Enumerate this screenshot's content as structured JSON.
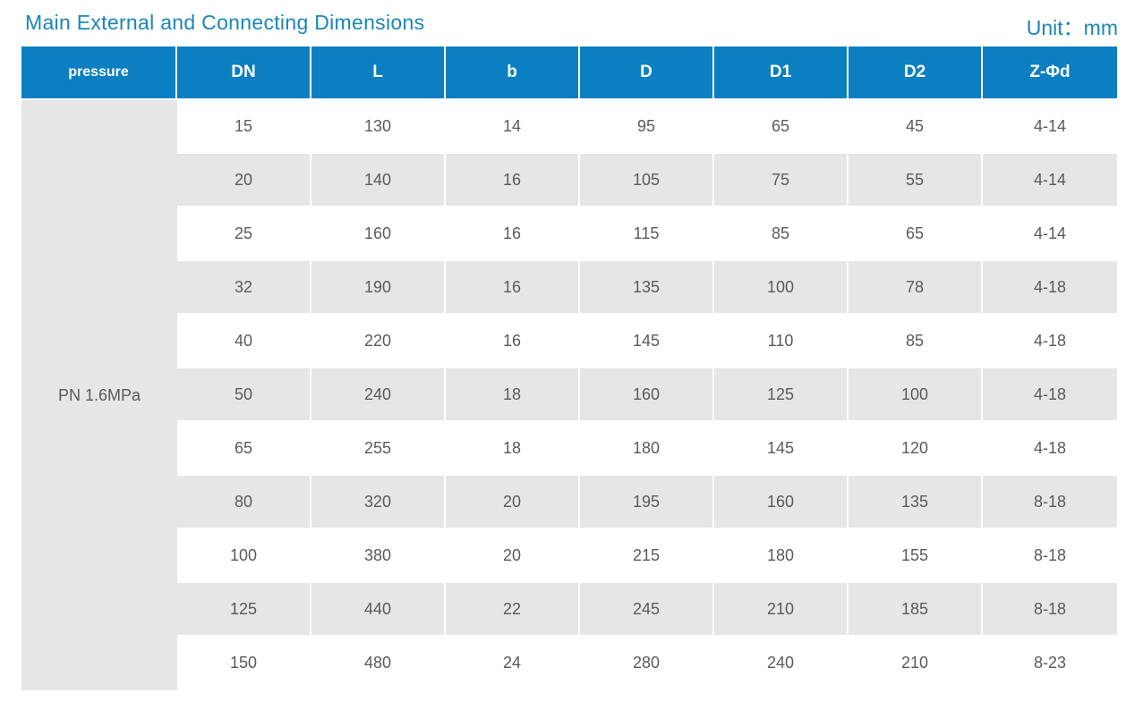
{
  "header": {
    "title": "Main External and Connecting Dimensions",
    "unit": "Unit：mm"
  },
  "table": {
    "columns": [
      "pressure",
      "DN",
      "L",
      "b",
      "D",
      "D1",
      "D2",
      "Z-Φd"
    ],
    "pressure": "PN 1.6MPa",
    "rows": [
      [
        15,
        130,
        14,
        95,
        65,
        45,
        "4-14"
      ],
      [
        20,
        140,
        16,
        105,
        75,
        55,
        "4-14"
      ],
      [
        25,
        160,
        16,
        115,
        85,
        65,
        "4-14"
      ],
      [
        32,
        190,
        16,
        135,
        100,
        78,
        "4-18"
      ],
      [
        40,
        220,
        16,
        145,
        110,
        85,
        "4-18"
      ],
      [
        50,
        240,
        18,
        160,
        125,
        100,
        "4-18"
      ],
      [
        65,
        255,
        18,
        180,
        145,
        120,
        "4-18"
      ],
      [
        80,
        320,
        20,
        195,
        160,
        135,
        "8-18"
      ],
      [
        100,
        380,
        20,
        215,
        180,
        155,
        "8-18"
      ],
      [
        125,
        440,
        22,
        245,
        210,
        185,
        "8-18"
      ],
      [
        150,
        480,
        24,
        280,
        240,
        210,
        "8-23"
      ]
    ]
  }
}
